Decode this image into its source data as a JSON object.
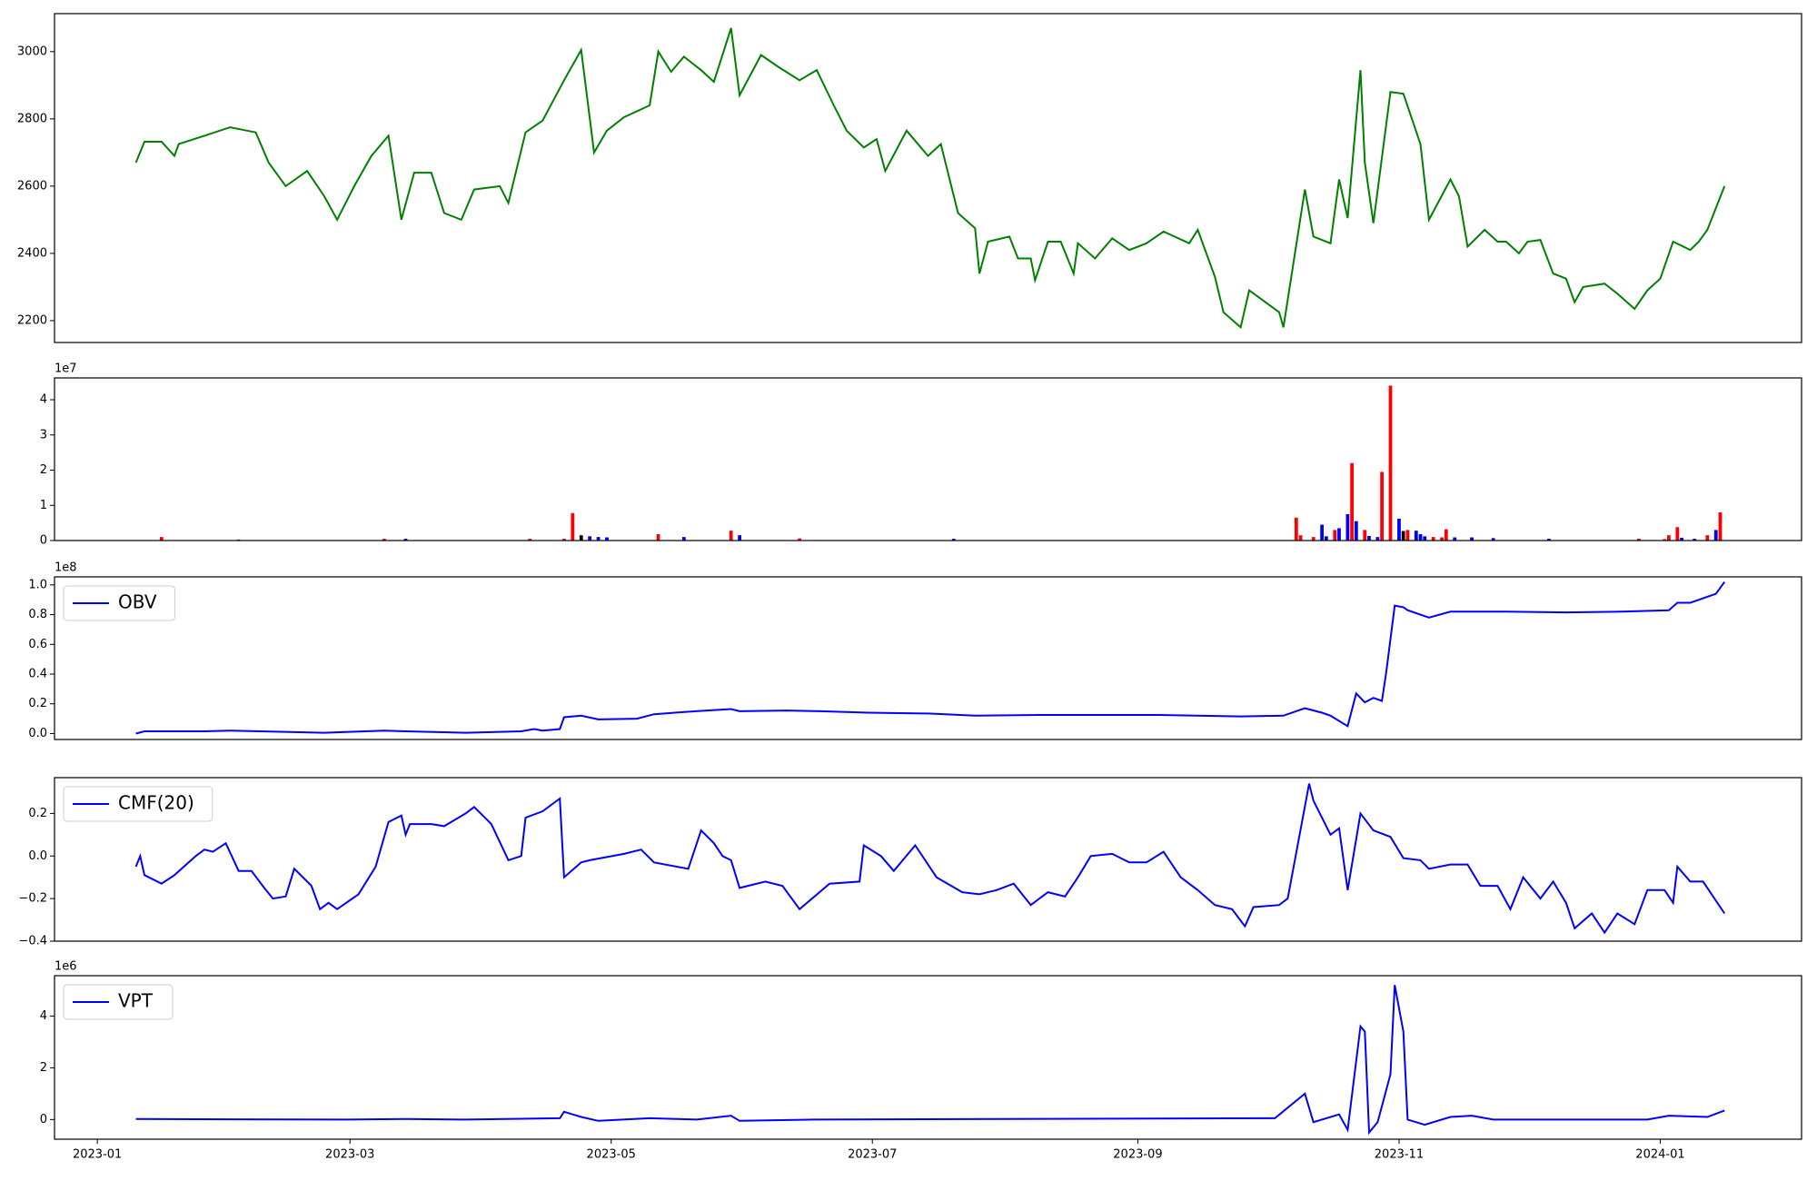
{
  "chart_data": [
    {
      "type": "line",
      "color": "#008000",
      "xlim": [
        "2022-12-22",
        "2024-02-03"
      ],
      "ylim": [
        2135,
        3113
      ],
      "yticks": [
        2200,
        2400,
        2600,
        2800,
        3000
      ],
      "x": [
        "2023-01-10",
        "2023-01-12",
        "2023-01-16",
        "2023-01-19",
        "2023-01-20",
        "2023-01-26",
        "2023-02-01",
        "2023-02-07",
        "2023-02-10",
        "2023-02-14",
        "2023-02-19",
        "2023-02-23",
        "2023-02-26",
        "2023-03-02",
        "2023-03-06",
        "2023-03-10",
        "2023-03-13",
        "2023-03-16",
        "2023-03-20",
        "2023-03-23",
        "2023-03-27",
        "2023-03-30",
        "2023-04-05",
        "2023-04-07",
        "2023-04-11",
        "2023-04-15",
        "2023-04-20",
        "2023-04-24",
        "2023-04-27",
        "2023-04-30",
        "2023-05-04",
        "2023-05-10",
        "2023-05-12",
        "2023-05-15",
        "2023-05-18",
        "2023-05-22",
        "2023-05-25",
        "2023-05-29",
        "2023-05-31",
        "2023-06-05",
        "2023-06-09",
        "2023-06-14",
        "2023-06-18",
        "2023-06-22",
        "2023-06-25",
        "2023-06-29",
        "2023-07-02",
        "2023-07-04",
        "2023-07-09",
        "2023-07-14",
        "2023-07-17",
        "2023-07-21",
        "2023-07-25",
        "2023-07-26",
        "2023-07-28",
        "2023-08-02",
        "2023-08-04",
        "2023-08-07",
        "2023-08-08",
        "2023-08-11",
        "2023-08-14",
        "2023-08-17",
        "2023-08-18",
        "2023-08-22",
        "2023-08-26",
        "2023-08-30",
        "2023-09-03",
        "2023-09-07",
        "2023-09-13",
        "2023-09-15",
        "2023-09-19",
        "2023-09-21",
        "2023-09-25",
        "2023-09-27",
        "2023-10-04",
        "2023-10-05",
        "2023-10-10",
        "2023-10-12",
        "2023-10-16",
        "2023-10-18",
        "2023-10-20",
        "2023-10-23",
        "2023-10-24",
        "2023-10-26",
        "2023-10-30",
        "2023-11-02",
        "2023-11-06",
        "2023-11-08",
        "2023-11-13",
        "2023-11-15",
        "2023-11-17",
        "2023-11-21",
        "2023-11-24",
        "2023-11-26",
        "2023-11-29",
        "2023-12-01",
        "2023-12-04",
        "2023-12-07",
        "2023-12-10",
        "2023-12-12",
        "2023-12-14",
        "2023-12-19",
        "2023-12-22",
        "2023-12-26",
        "2023-12-29",
        "2024-01-01",
        "2024-01-04",
        "2024-01-08",
        "2024-01-10",
        "2024-01-12",
        "2024-01-16"
      ],
      "values": [
        2670,
        2732,
        2732,
        2690,
        2725,
        2750,
        2775,
        2760,
        2670,
        2600,
        2645,
        2570,
        2500,
        2600,
        2690,
        2750,
        2500,
        2640,
        2640,
        2520,
        2500,
        2590,
        2600,
        2550,
        2760,
        2795,
        2915,
        3005,
        2700,
        2765,
        2805,
        2840,
        3000,
        2940,
        2985,
        2945,
        2910,
        3070,
        2870,
        2990,
        2955,
        2915,
        2945,
        2840,
        2765,
        2715,
        2740,
        2645,
        2765,
        2690,
        2725,
        2520,
        2475,
        2340,
        2435,
        2450,
        2385,
        2385,
        2320,
        2435,
        2435,
        2340,
        2430,
        2385,
        2445,
        2410,
        2430,
        2465,
        2430,
        2470,
        2330,
        2225,
        2180,
        2290,
        2225,
        2180,
        2590,
        2450,
        2430,
        2620,
        2505,
        2945,
        2670,
        2490,
        2880,
        2875,
        2725,
        2500,
        2620,
        2570,
        2420,
        2470,
        2435,
        2435,
        2400,
        2435,
        2440,
        2340,
        2325,
        2255,
        2300,
        2310,
        2280,
        2235,
        2290,
        2325,
        2435,
        2410,
        2435,
        2470,
        2600
      ]
    },
    {
      "type": "bar",
      "offset_label": "1e7",
      "xlim": [
        "2022-12-22",
        "2024-02-03"
      ],
      "ylim": [
        0,
        46200000
      ],
      "yticks": [
        {
          "value": 0,
          "label": "0"
        },
        {
          "value": 10000000,
          "label": "1"
        },
        {
          "value": 20000000,
          "label": "2"
        },
        {
          "value": 30000000,
          "label": "3"
        },
        {
          "value": 40000000,
          "label": "4"
        }
      ],
      "x": [
        "2023-01-16",
        "2023-02-03",
        "2023-03-09",
        "2023-03-14",
        "2023-04-12",
        "2023-04-20",
        "2023-04-22",
        "2023-04-24",
        "2023-04-26",
        "2023-04-28",
        "2023-04-30",
        "2023-05-12",
        "2023-05-18",
        "2023-05-29",
        "2023-05-31",
        "2023-06-14",
        "2023-07-20",
        "2023-10-08",
        "2023-10-09",
        "2023-10-12",
        "2023-10-14",
        "2023-10-15",
        "2023-10-17",
        "2023-10-18",
        "2023-10-20",
        "2023-10-21",
        "2023-10-22",
        "2023-10-24",
        "2023-10-25",
        "2023-10-27",
        "2023-10-28",
        "2023-10-30",
        "2023-11-01",
        "2023-11-02",
        "2023-11-03",
        "2023-11-05",
        "2023-11-06",
        "2023-11-07",
        "2023-11-09",
        "2023-11-11",
        "2023-11-12",
        "2023-11-14",
        "2023-11-18",
        "2023-11-23",
        "2023-12-06",
        "2023-12-27",
        "2024-01-02",
        "2024-01-03",
        "2024-01-05",
        "2024-01-06",
        "2024-01-09",
        "2024-01-12",
        "2024-01-14",
        "2024-01-15"
      ],
      "values": [
        1000000,
        300000,
        500000,
        500000,
        500000,
        500000,
        7800000,
        1500000,
        1200000,
        1000000,
        900000,
        1800000,
        1000000,
        2800000,
        1500000,
        600000,
        500000,
        6500000,
        1500000,
        1000000,
        4500000,
        1200000,
        3000000,
        3500000,
        7500000,
        22000000,
        5500000,
        3000000,
        1300000,
        1000000,
        19500000,
        44000000,
        6200000,
        2700000,
        3000000,
        2800000,
        1800000,
        1200000,
        1000000,
        900000,
        3200000,
        900000,
        900000,
        700000,
        500000,
        500000,
        400000,
        1500000,
        3800000,
        800000,
        500000,
        1500000,
        3000000,
        8000000
      ],
      "colors": [
        "#ff0000",
        "#ff0000",
        "#ff0000",
        "#0000ff",
        "#ff0000",
        "#ff0000",
        "#ff0000",
        "#000000",
        "#0000ff",
        "#0000ff",
        "#0000ff",
        "#ff0000",
        "#0000ff",
        "#ff0000",
        "#0000ff",
        "#ff0000",
        "#0000ff",
        "#ff0000",
        "#ff0000",
        "#ff0000",
        "#0000ff",
        "#0000ff",
        "#ff0000",
        "#0000ff",
        "#0000ff",
        "#ff0000",
        "#0000ff",
        "#ff0000",
        "#0000ff",
        "#0000ff",
        "#ff0000",
        "#ff0000",
        "#0000ff",
        "#000000",
        "#ff0000",
        "#0000ff",
        "#0000ff",
        "#0000ff",
        "#ff0000",
        "#ff0000",
        "#ff0000",
        "#0000ff",
        "#0000ff",
        "#0000ff",
        "#0000ff",
        "#ff0000",
        "#ff0000",
        "#ff0000",
        "#ff0000",
        "#0000ff",
        "#0000ff",
        "#ff0000",
        "#0000ff",
        "#ff0000"
      ]
    },
    {
      "type": "line",
      "offset_label": "1e8",
      "legend": "upper left",
      "xlim": [
        "2022-12-22",
        "2024-02-03"
      ],
      "ylim": [
        -4000000,
        105400000
      ],
      "yticks": [
        {
          "value": 0,
          "label": "0.0"
        },
        {
          "value": 20000000,
          "label": "0.2"
        },
        {
          "value": 40000000,
          "label": "0.4"
        },
        {
          "value": 60000000,
          "label": "0.6"
        },
        {
          "value": 80000000,
          "label": "0.8"
        },
        {
          "value": 100000000,
          "label": "1.0"
        }
      ],
      "x": [
        "2023-01-10",
        "2023-01-12",
        "2023-01-26",
        "2023-02-01",
        "2023-02-15",
        "2023-02-23",
        "2023-03-09",
        "2023-03-14",
        "2023-03-28",
        "2023-04-10",
        "2023-04-13",
        "2023-04-15",
        "2023-04-19",
        "2023-04-20",
        "2023-04-24",
        "2023-04-28",
        "2023-05-07",
        "2023-05-11",
        "2023-05-18",
        "2023-05-29",
        "2023-05-31",
        "2023-06-11",
        "2023-06-19",
        "2023-06-30",
        "2023-07-14",
        "2023-07-25",
        "2023-08-10",
        "2023-09-06",
        "2023-09-25",
        "2023-10-05",
        "2023-10-10",
        "2023-10-14",
        "2023-10-16",
        "2023-10-20",
        "2023-10-22",
        "2023-10-24",
        "2023-10-26",
        "2023-10-28",
        "2023-10-29",
        "2023-10-31",
        "2023-11-02",
        "2023-11-03",
        "2023-11-08",
        "2023-11-13",
        "2023-11-26",
        "2023-12-10",
        "2023-12-23",
        "2024-01-03",
        "2024-01-05",
        "2024-01-08",
        "2024-01-14",
        "2024-01-16"
      ],
      "series": [
        {
          "name": "OBV",
          "color": "#0000ff",
          "values": [
            0,
            1500000,
            1500000,
            2000000,
            1000000,
            500000,
            2000000,
            1500000,
            500000,
            1500000,
            3000000,
            2000000,
            3000000,
            11000000,
            12000000,
            9500000,
            10000000,
            13000000,
            14500000,
            16500000,
            15000000,
            15500000,
            15000000,
            14000000,
            13500000,
            12000000,
            12500000,
            12500000,
            11500000,
            12000000,
            17000000,
            14000000,
            12000000,
            5000000,
            27000000,
            21000000,
            24000000,
            22000000,
            41000000,
            86000000,
            85000000,
            83000000,
            78000000,
            82000000,
            82000000,
            81500000,
            82000000,
            83000000,
            88000000,
            88000000,
            94000000,
            102000000
          ]
        }
      ]
    },
    {
      "type": "line",
      "legend": "upper left",
      "xlim": [
        "2022-12-22",
        "2024-02-03"
      ],
      "ylim": [
        -0.4,
        0.368
      ],
      "yticks": [
        {
          "value": -0.4,
          "label": "−0.4"
        },
        {
          "value": -0.2,
          "label": "−0.2"
        },
        {
          "value": 0,
          "label": "0.0"
        },
        0.2
      ],
      "x": [
        "2023-01-10",
        "2023-01-11",
        "2023-01-12",
        "2023-01-16",
        "2023-01-19",
        "2023-01-24",
        "2023-01-26",
        "2023-01-28",
        "2023-01-31",
        "2023-02-03",
        "2023-02-06",
        "2023-02-09",
        "2023-02-11",
        "2023-02-14",
        "2023-02-16",
        "2023-02-20",
        "2023-02-22",
        "2023-02-24",
        "2023-02-26",
        "2023-03-03",
        "2023-03-07",
        "2023-03-10",
        "2023-03-13",
        "2023-03-14",
        "2023-03-15",
        "2023-03-20",
        "2023-03-23",
        "2023-03-28",
        "2023-03-30",
        "2023-04-03",
        "2023-04-07",
        "2023-04-10",
        "2023-04-11",
        "2023-04-15",
        "2023-04-19",
        "2023-04-20",
        "2023-04-24",
        "2023-04-26",
        "2023-05-04",
        "2023-05-08",
        "2023-05-11",
        "2023-05-19",
        "2023-05-22",
        "2023-05-25",
        "2023-05-27",
        "2023-05-29",
        "2023-05-31",
        "2023-06-06",
        "2023-06-10",
        "2023-06-14",
        "2023-06-21",
        "2023-06-28",
        "2023-06-29",
        "2023-07-03",
        "2023-07-06",
        "2023-07-11",
        "2023-07-16",
        "2023-07-22",
        "2023-07-26",
        "2023-07-30",
        "2023-08-03",
        "2023-08-07",
        "2023-08-11",
        "2023-08-15",
        "2023-08-18",
        "2023-08-21",
        "2023-08-26",
        "2023-08-30",
        "2023-09-03",
        "2023-09-07",
        "2023-09-11",
        "2023-09-15",
        "2023-09-19",
        "2023-09-23",
        "2023-09-26",
        "2023-09-28",
        "2023-10-04",
        "2023-10-06",
        "2023-10-11",
        "2023-10-12",
        "2023-10-16",
        "2023-10-18",
        "2023-10-20",
        "2023-10-23",
        "2023-10-26",
        "2023-10-30",
        "2023-11-02",
        "2023-11-06",
        "2023-11-08",
        "2023-11-13",
        "2023-11-17",
        "2023-11-20",
        "2023-11-24",
        "2023-11-27",
        "2023-11-30",
        "2023-12-04",
        "2023-12-07",
        "2023-12-10",
        "2023-12-12",
        "2023-12-16",
        "2023-12-19",
        "2023-12-22",
        "2023-12-26",
        "2023-12-29",
        "2024-01-02",
        "2024-01-04",
        "2024-01-05",
        "2024-01-08",
        "2024-01-11",
        "2024-01-16"
      ],
      "series": [
        {
          "name": "CMF(20)",
          "color": "#0000ff",
          "values": [
            -0.05,
            0.0,
            -0.09,
            -0.13,
            -0.09,
            0.0,
            0.03,
            0.02,
            0.06,
            -0.07,
            -0.07,
            -0.15,
            -0.2,
            -0.19,
            -0.06,
            -0.14,
            -0.25,
            -0.22,
            -0.25,
            -0.18,
            -0.05,
            0.16,
            0.19,
            0.1,
            0.15,
            0.15,
            0.14,
            0.2,
            0.23,
            0.15,
            -0.02,
            0.0,
            0.18,
            0.21,
            0.27,
            -0.1,
            -0.03,
            -0.02,
            0.01,
            0.03,
            -0.03,
            -0.06,
            0.12,
            0.06,
            0.0,
            -0.02,
            -0.15,
            -0.12,
            -0.14,
            -0.25,
            -0.13,
            -0.12,
            0.05,
            0.0,
            -0.07,
            0.05,
            -0.1,
            -0.17,
            -0.18,
            -0.16,
            -0.13,
            -0.23,
            -0.17,
            -0.19,
            -0.1,
            0.0,
            0.01,
            -0.03,
            -0.03,
            0.02,
            -0.1,
            -0.16,
            -0.23,
            -0.25,
            -0.33,
            -0.24,
            -0.23,
            -0.2,
            0.34,
            0.26,
            0.1,
            0.13,
            -0.16,
            0.2,
            0.12,
            0.09,
            -0.01,
            -0.02,
            -0.06,
            -0.04,
            -0.04,
            -0.14,
            -0.14,
            -0.25,
            -0.1,
            -0.2,
            -0.12,
            -0.22,
            -0.34,
            -0.27,
            -0.36,
            -0.27,
            -0.32,
            -0.16,
            -0.16,
            -0.22,
            -0.05,
            -0.12,
            -0.12,
            -0.27
          ]
        }
      ]
    },
    {
      "type": "line",
      "offset_label": "1e6",
      "legend": "upper left",
      "xlim": [
        "2022-12-22",
        "2024-02-03"
      ],
      "ylim": [
        -760000,
        5560000
      ],
      "yticks": [
        {
          "value": 0,
          "label": "0"
        },
        {
          "value": 2000000,
          "label": "2"
        },
        {
          "value": 4000000,
          "label": "4"
        }
      ],
      "xticks": [
        "2023-01",
        "2023-03",
        "2023-05",
        "2023-07",
        "2023-09",
        "2023-11",
        "2024-01"
      ],
      "x": [
        "2023-01-10",
        "2023-02-28",
        "2023-03-14",
        "2023-03-28",
        "2023-04-19",
        "2023-04-20",
        "2023-04-24",
        "2023-04-28",
        "2023-05-10",
        "2023-05-21",
        "2023-05-29",
        "2023-05-31",
        "2023-06-17",
        "2023-10-03",
        "2023-10-10",
        "2023-10-12",
        "2023-10-18",
        "2023-10-20",
        "2023-10-23",
        "2023-10-24",
        "2023-10-25",
        "2023-10-27",
        "2023-10-30",
        "2023-10-31",
        "2023-11-02",
        "2023-11-03",
        "2023-11-07",
        "2023-11-13",
        "2023-11-18",
        "2023-11-23",
        "2023-12-29",
        "2024-01-03",
        "2024-01-12",
        "2024-01-16"
      ],
      "series": [
        {
          "name": "VPT",
          "color": "#0000ff",
          "values": [
            20000,
            0,
            20000,
            0,
            50000,
            300000,
            100000,
            -50000,
            50000,
            0,
            150000,
            -50000,
            0,
            50000,
            1000000,
            -100000,
            200000,
            -400000,
            3600000,
            3400000,
            -500000,
            -100000,
            1750000,
            5200000,
            3400000,
            0,
            -200000,
            100000,
            150000,
            0,
            0,
            150000,
            100000,
            350000
          ]
        }
      ]
    }
  ]
}
